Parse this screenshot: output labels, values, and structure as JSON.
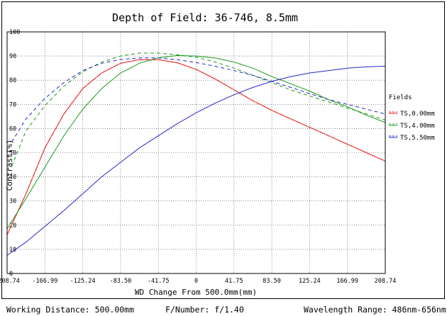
{
  "chart_data": {
    "type": "line",
    "title": "Depth of Field: 36-746, 8.5mm",
    "xlabel": "WD Change From 500.0mm(mm)",
    "ylabel": "Contrast(%)",
    "xlim": [
      -208.74,
      208.74
    ],
    "ylim": [
      0,
      100
    ],
    "x_ticks": [
      "-208.74",
      "-166.99",
      "-125.24",
      "-83.50",
      "-41.75",
      "0",
      "41.75",
      "83.50",
      "125.24",
      "166.99",
      "208.74"
    ],
    "y_ticks": [
      "0",
      "10",
      "20",
      "30",
      "40",
      "50",
      "60",
      "70",
      "80",
      "90",
      "100"
    ],
    "grid": true,
    "legend_title": "Fields",
    "legend_position": "right",
    "series": [
      {
        "name": "TS,0.00mm",
        "color": "#e82020",
        "dashed": false,
        "x": [
          -208.74,
          -187.9,
          -166.99,
          -146.1,
          -125.24,
          -104.4,
          -83.5,
          -62.6,
          -41.75,
          -20.9,
          0,
          20.9,
          41.75,
          62.6,
          83.5,
          104.4,
          125.24,
          146.1,
          166.99,
          187.9,
          208.74
        ],
        "y": [
          16,
          33,
          52,
          66,
          76.5,
          83,
          87,
          88.5,
          88.5,
          87.2,
          84.5,
          80.5,
          76,
          71.5,
          67.5,
          64,
          60.5,
          57,
          53.5,
          50,
          46.5
        ]
      },
      {
        "name": "TS,0.00mm",
        "color": "#e82020",
        "dashed": true,
        "x": [
          -208.74,
          -187.9,
          -166.99,
          -146.1,
          -125.24,
          -104.4,
          -83.5,
          -62.6,
          -41.75,
          -20.9,
          0,
          20.9,
          41.75,
          62.6,
          83.5,
          104.4,
          125.24,
          146.1,
          166.99,
          187.9,
          208.74
        ],
        "y": [
          16,
          33,
          52,
          66,
          76.5,
          83,
          87,
          88.5,
          88.5,
          87.2,
          84.5,
          80.5,
          76,
          71.5,
          67.5,
          64,
          60.5,
          57,
          53.5,
          50,
          46.5
        ]
      },
      {
        "name": "TS,4.00mm",
        "color": "#1a9a1a",
        "dashed": false,
        "x": [
          -208.74,
          -187.9,
          -166.99,
          -146.1,
          -125.24,
          -104.4,
          -83.5,
          -62.6,
          -41.75,
          -20.9,
          0,
          20.9,
          41.75,
          62.6,
          83.5,
          104.4,
          125.24,
          146.1,
          166.99,
          187.9,
          208.74
        ],
        "y": [
          18.5,
          31,
          44,
          57,
          68,
          76.5,
          83,
          87,
          89.3,
          90.2,
          90,
          89.2,
          87.5,
          85,
          81.5,
          78.5,
          75.5,
          72,
          69,
          65.5,
          62.5
        ]
      },
      {
        "name": "TS,4.00mm",
        "color": "#1a9a1a",
        "dashed": true,
        "x": [
          -203.5,
          -187.9,
          -166.99,
          -146.1,
          -125.24,
          -104.4,
          -83.5,
          -62.6,
          -41.75,
          -20.9,
          0,
          20.9,
          41.75,
          62.6,
          83.5,
          104.4,
          125.24,
          146.1,
          166.99,
          187.9,
          208.74
        ],
        "y": [
          44.5,
          59,
          69.5,
          77.5,
          83.5,
          87.5,
          90,
          91.2,
          91.2,
          90.5,
          89.5,
          87.5,
          85,
          82,
          79,
          76,
          73.5,
          71,
          68.5,
          66,
          63.5
        ]
      },
      {
        "name": "TS,5.50mm",
        "color": "#2525cc",
        "dashed": false,
        "x": [
          -208.74,
          -187.9,
          -166.99,
          -146.1,
          -125.24,
          -104.4,
          -83.5,
          -62.6,
          -41.75,
          -20.9,
          0,
          20.9,
          41.75,
          62.6,
          83.5,
          104.4,
          125.24,
          146.1,
          166.99,
          187.9,
          208.74
        ],
        "y": [
          7.5,
          13,
          19.5,
          26,
          33,
          40,
          46,
          52,
          57,
          62,
          66.5,
          70.5,
          74,
          77,
          79.5,
          81.5,
          83,
          84,
          85,
          85.5,
          85.8
        ]
      },
      {
        "name": "TS,5.50mm",
        "color": "#2525cc",
        "dashed": true,
        "x": [
          -203.5,
          -187.9,
          -166.99,
          -146.1,
          -125.24,
          -104.4,
          -83.5,
          -62.6,
          -41.75,
          -20.9,
          0,
          20.9,
          41.75,
          62.6,
          83.5,
          104.4,
          125.24,
          146.1,
          166.99,
          187.9,
          208.74
        ],
        "y": [
          54.5,
          64,
          72.5,
          79,
          84,
          87,
          88.6,
          89.2,
          89.2,
          88.5,
          87.3,
          85.8,
          84,
          82,
          79.5,
          77,
          74.5,
          72,
          70,
          68,
          66
        ]
      }
    ]
  },
  "footer": {
    "working_distance": "Working Distance: 500.00mm",
    "f_number": "F/Number: f/1.40",
    "wavelength": "Wavelength Range: 486nm-656nm"
  }
}
